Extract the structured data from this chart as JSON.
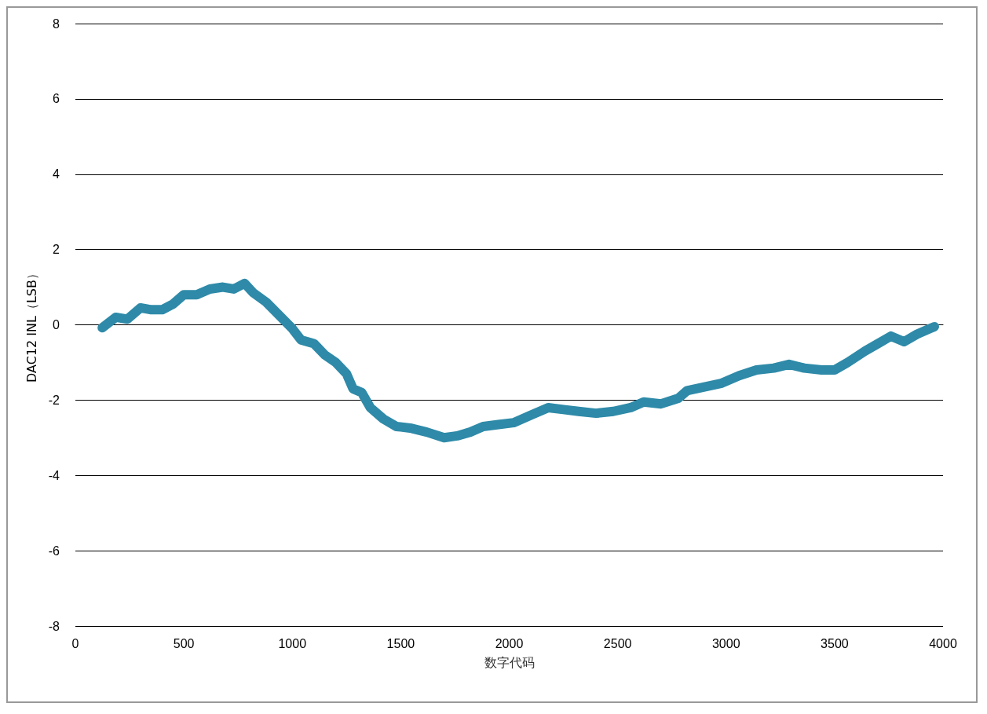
{
  "chart_data": {
    "type": "line",
    "xlabel": "数字代码",
    "ylabel": "DAC12 INL（LSB）",
    "xlim": [
      0,
      4000
    ],
    "xticks": [
      0,
      500,
      1000,
      1500,
      2000,
      2500,
      3000,
      3500,
      4000
    ],
    "ylim": [
      -8,
      8
    ],
    "yticks": [
      -8,
      -6,
      -4,
      -2,
      0,
      2,
      4,
      6,
      8
    ],
    "grid": "y",
    "line_style": "solid",
    "series": [
      {
        "color": "#2e8aa8",
        "x": [
          124,
          186,
          240,
          300,
          350,
          400,
          450,
          500,
          560,
          620,
          680,
          730,
          780,
          820,
          880,
          940,
          1000,
          1040,
          1100,
          1150,
          1200,
          1250,
          1280,
          1320,
          1360,
          1420,
          1480,
          1550,
          1620,
          1700,
          1760,
          1820,
          1880,
          1950,
          2020,
          2100,
          2180,
          2250,
          2320,
          2400,
          2480,
          2560,
          2620,
          2700,
          2780,
          2820,
          2900,
          2980,
          3060,
          3140,
          3220,
          3290,
          3360,
          3440,
          3500,
          3560,
          3640,
          3700,
          3760,
          3820,
          3880,
          3940,
          3960
        ],
        "values": [
          -0.08,
          0.2,
          0.15,
          0.45,
          0.4,
          0.4,
          0.55,
          0.8,
          0.8,
          0.95,
          1.0,
          0.95,
          1.1,
          0.85,
          0.6,
          0.25,
          -0.1,
          -0.4,
          -0.5,
          -0.8,
          -1.0,
          -1.3,
          -1.7,
          -1.8,
          -2.2,
          -2.5,
          -2.7,
          -2.75,
          -2.85,
          -3.0,
          -2.95,
          -2.85,
          -2.7,
          -2.65,
          -2.6,
          -2.4,
          -2.2,
          -2.25,
          -2.3,
          -2.35,
          -2.3,
          -2.2,
          -2.05,
          -2.1,
          -1.95,
          -1.75,
          -1.65,
          -1.55,
          -1.35,
          -1.2,
          -1.15,
          -1.05,
          -1.15,
          -1.2,
          -1.2,
          -1.0,
          -0.7,
          -0.5,
          -0.3,
          -0.45,
          -0.25,
          -0.1,
          -0.05
        ]
      }
    ]
  }
}
